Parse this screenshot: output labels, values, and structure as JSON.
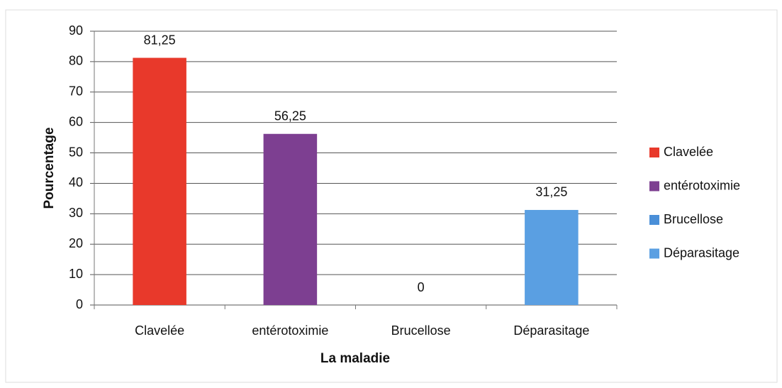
{
  "chart_data": {
    "type": "bar",
    "categories": [
      "Clavelée",
      "entérotoximie",
      "Brucellose",
      "Déparasitage"
    ],
    "values": [
      81.25,
      56.25,
      0,
      31.25
    ],
    "value_labels": [
      "81,25",
      "56,25",
      "0",
      "31,25"
    ],
    "colors": [
      "#e8392b",
      "#7d3f91",
      "#4a8fd8",
      "#5a9fe2"
    ],
    "xlabel": "La maladie",
    "ylabel": "Pourcentage",
    "ylim": [
      0,
      90
    ],
    "yticks": [
      0,
      10,
      20,
      30,
      40,
      50,
      60,
      70,
      80,
      90
    ],
    "grid": true,
    "legend": "right"
  }
}
